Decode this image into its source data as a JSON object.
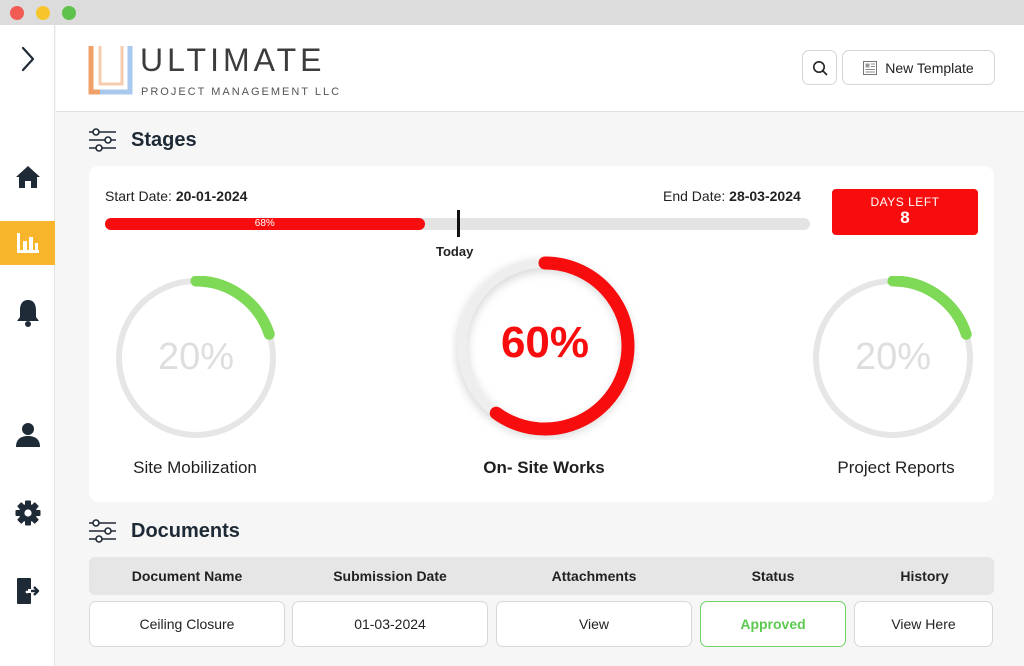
{
  "window": {
    "controls": [
      "close",
      "minimize",
      "maximize"
    ]
  },
  "sidebar": {
    "items": [
      {
        "icon": "chevron-right-icon",
        "active": false
      },
      {
        "icon": "home-icon",
        "active": false
      },
      {
        "icon": "bar-chart-icon",
        "active": true
      },
      {
        "icon": "bell-icon",
        "active": false
      },
      {
        "icon": "user-icon",
        "active": false
      },
      {
        "icon": "gear-icon",
        "active": false
      },
      {
        "icon": "logout-icon",
        "active": false
      }
    ]
  },
  "header": {
    "logo_title": "ULTIMATE",
    "logo_subtitle": "PROJECT MANAGEMENT LLC",
    "new_template_label": "New Template"
  },
  "stages": {
    "title": "Stages",
    "start_label": "Start Date:",
    "start_date": "20-01-2024",
    "end_label": "End Date:",
    "end_date": "28-03-2024",
    "progress_percent": 68,
    "progress_label": "68%",
    "today_label": "Today",
    "today_position_fraction": 0.52,
    "days_left_label": "DAYS LEFT",
    "days_left_value": "8",
    "items": [
      {
        "name": "Site Mobilization",
        "percent": 20,
        "percent_label": "20%",
        "arc_color": "#7ed957",
        "highlighted": false
      },
      {
        "name": "On- Site Works",
        "percent": 60,
        "percent_label": "60%",
        "arc_color": "#f70d0d",
        "highlighted": true
      },
      {
        "name": "Project Reports",
        "percent": 20,
        "percent_label": "20%",
        "arc_color": "#7ed957",
        "highlighted": false
      }
    ]
  },
  "documents": {
    "title": "Documents",
    "columns": [
      "Document Name",
      "Submission Date",
      "Attachments",
      "Status",
      "History"
    ],
    "rows": [
      {
        "name": "Ceiling Closure",
        "date": "01-03-2024",
        "attachment": "View",
        "status": "Approved",
        "history": "View Here"
      }
    ]
  },
  "colors": {
    "accent": "#f70d0d",
    "sidebar_active": "#f7b52c",
    "success": "#5cc950",
    "track": "#e4e4e4"
  }
}
